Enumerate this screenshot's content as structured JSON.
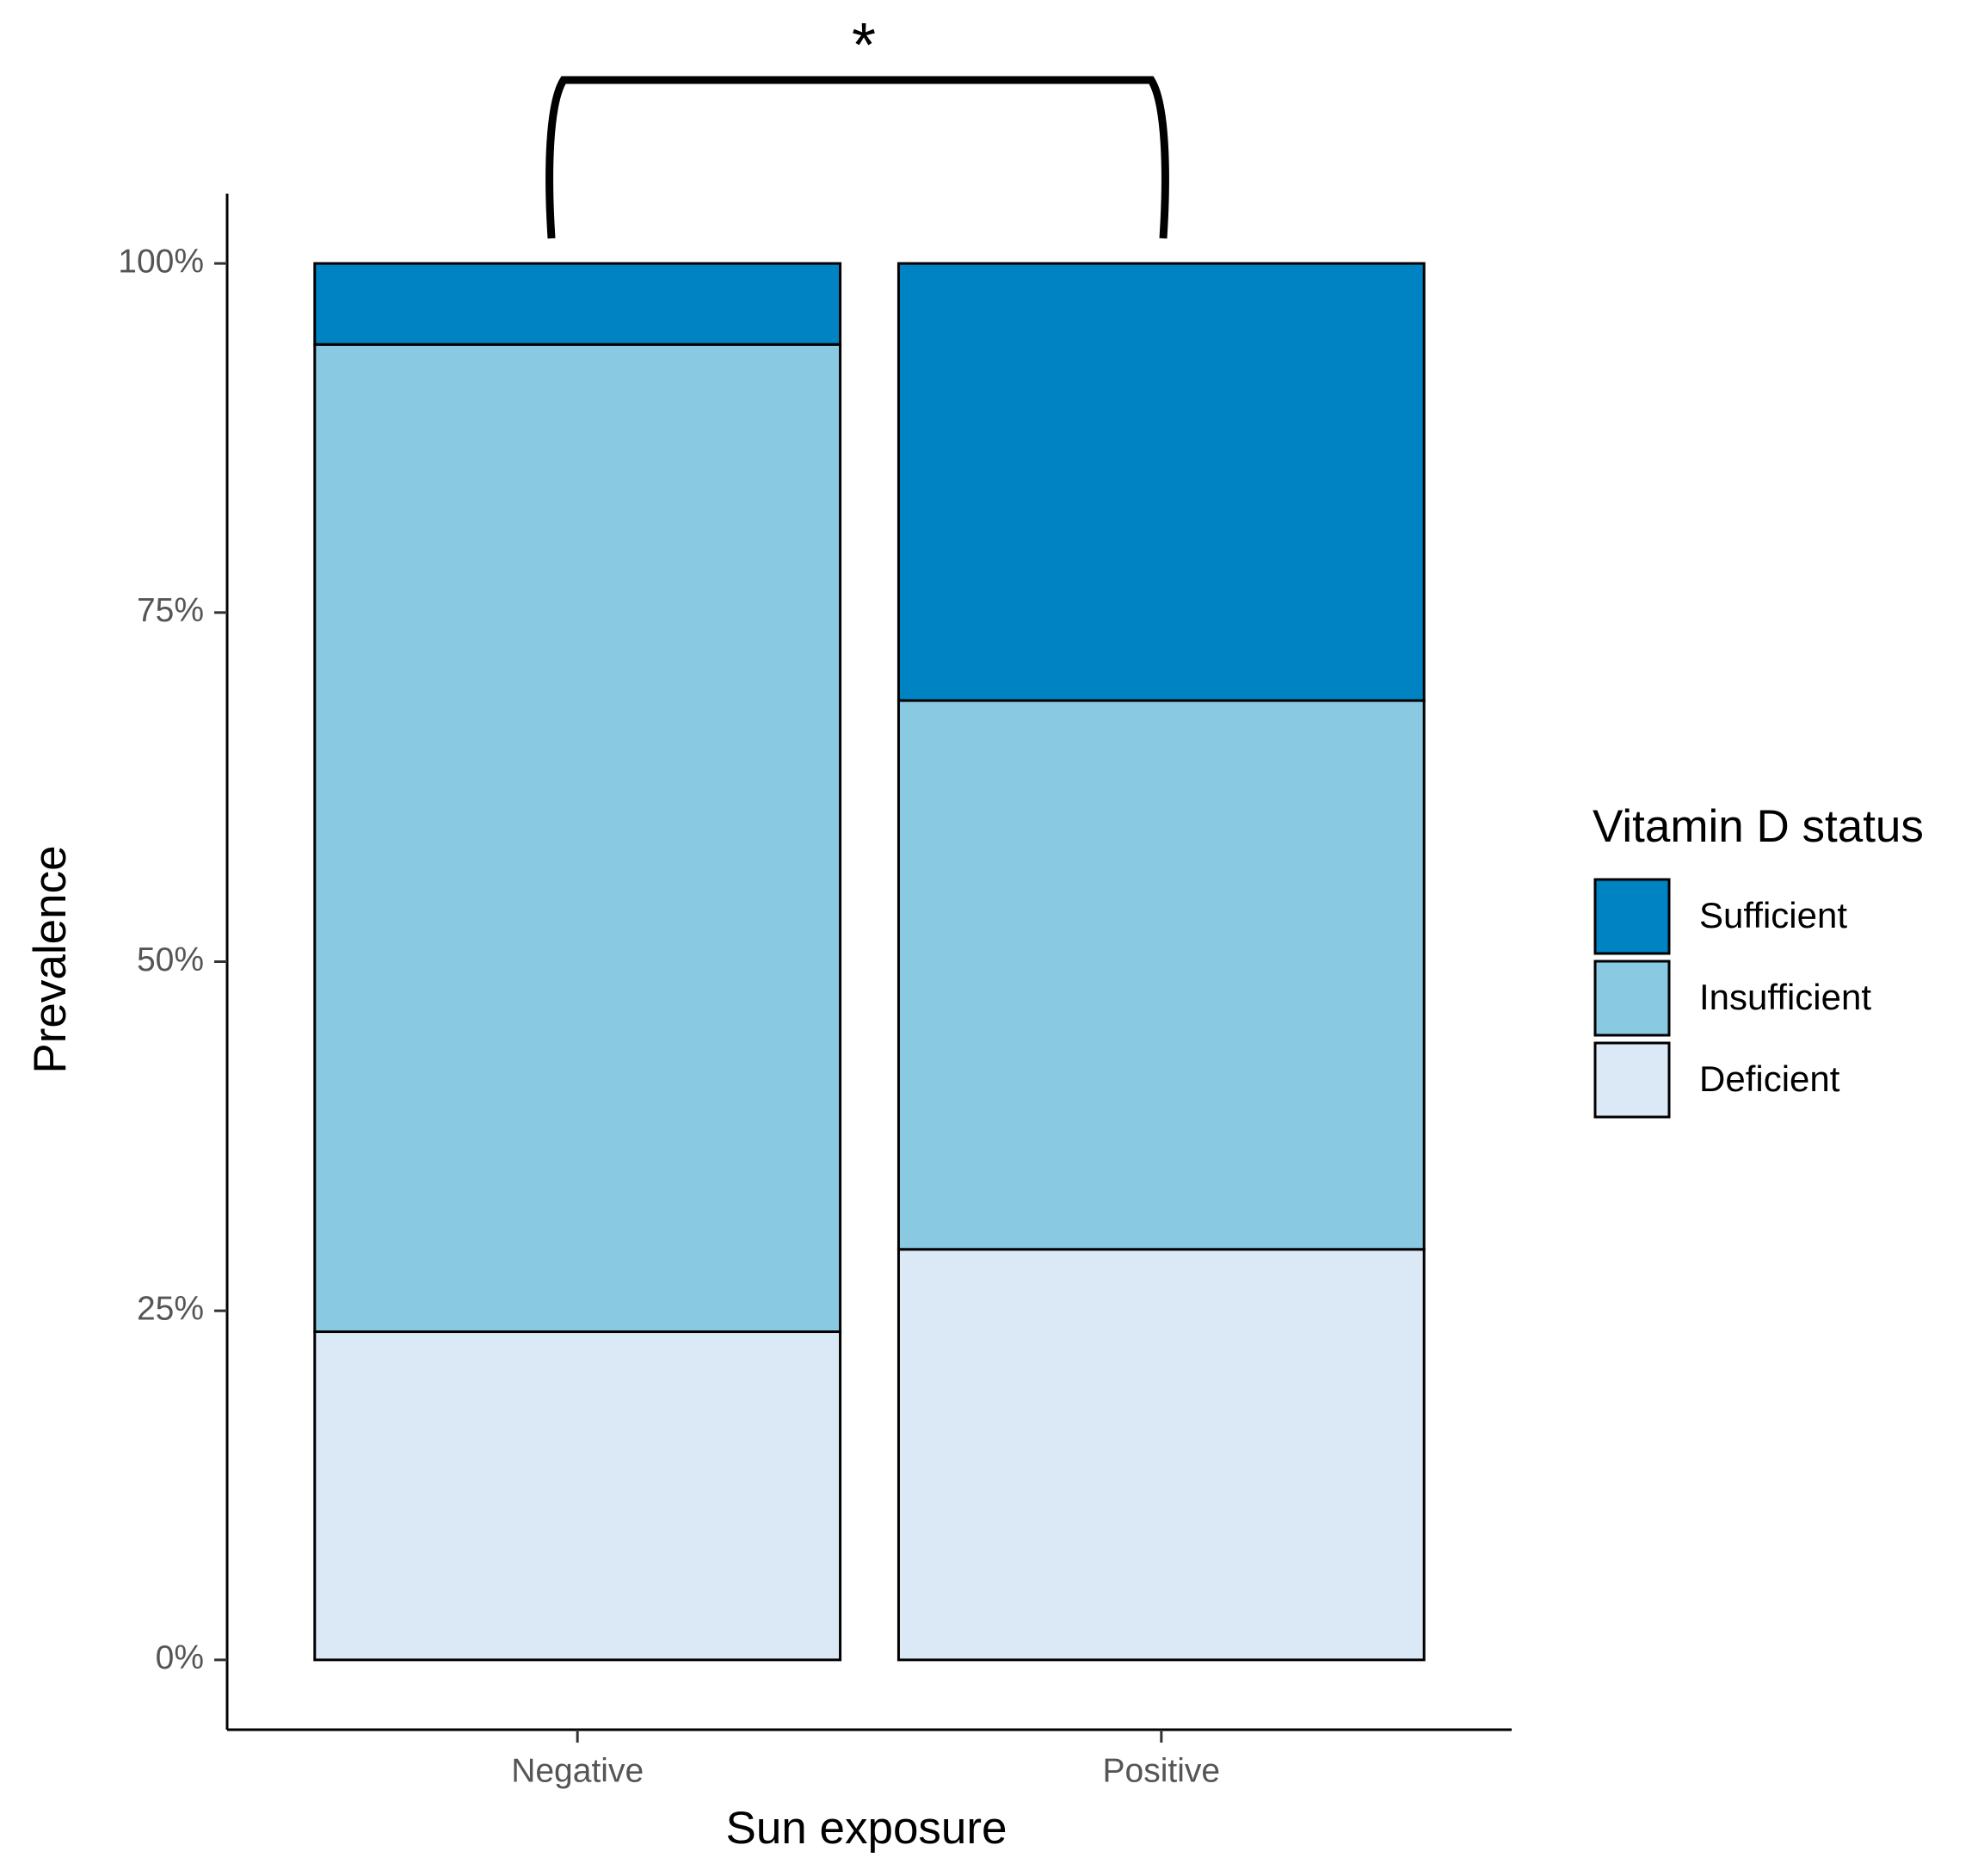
{
  "chart_data": {
    "type": "stacked_bar",
    "annotation": "*",
    "x_label": "Sun exposure",
    "y_label": "Prevalence",
    "legend_title": "Vitamin D status",
    "legend_position": "right",
    "categories": [
      "Negative",
      "Positive"
    ],
    "series": [
      {
        "name": "Sufficient",
        "color": "#0083c2",
        "values": [
          5.8,
          31.3
        ]
      },
      {
        "name": "Insufficient",
        "color": "#89c9e2",
        "values": [
          70.7,
          39.3
        ]
      },
      {
        "name": "Deficient",
        "color": "#dbe9f6",
        "values": [
          23.5,
          29.4
        ]
      }
    ],
    "ylim": [
      -5,
      105
    ],
    "yticks": [
      {
        "value": 0,
        "label": "0%"
      },
      {
        "value": 25,
        "label": "25%"
      },
      {
        "value": 50,
        "label": "50%"
      },
      {
        "value": 75,
        "label": "75%"
      },
      {
        "value": 100,
        "label": "100%"
      }
    ],
    "grid": false
  }
}
